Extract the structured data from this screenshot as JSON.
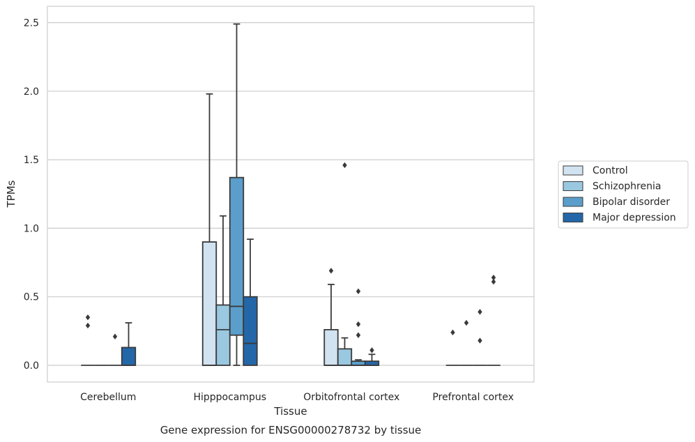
{
  "chart_data": {
    "type": "box",
    "title": "",
    "caption": "Gene expression for ENSG00000278732 by tissue",
    "xlabel": "Tissue",
    "ylabel": "TPMs",
    "ylim": [
      -0.12,
      2.62
    ],
    "yticks": [
      0.0,
      0.5,
      1.0,
      1.5,
      2.0,
      2.5
    ],
    "ytick_labels": [
      "0.0",
      "0.5",
      "1.0",
      "1.5",
      "2.0",
      "2.5"
    ],
    "categories": [
      "Cerebellum",
      "Hipppocampus",
      "Orbitofrontal cortex",
      "Prefrontal cortex"
    ],
    "grid": "horizontal",
    "legend_position": "right",
    "series": [
      {
        "name": "Control",
        "color": "#d1e2f1",
        "boxes": [
          {
            "q1": 0,
            "median": 0,
            "q3": 0,
            "whisker_low": 0,
            "whisker_high": 0,
            "outliers": [
              0.29,
              0.35
            ]
          },
          {
            "q1": 0,
            "median": 0,
            "q3": 0.9,
            "whisker_low": 0,
            "whisker_high": 1.98,
            "outliers": []
          },
          {
            "q1": 0,
            "median": 0,
            "q3": 0.26,
            "whisker_low": 0,
            "whisker_high": 0.59,
            "outliers": [
              0.69
            ]
          },
          {
            "q1": 0,
            "median": 0,
            "q3": 0,
            "whisker_low": 0,
            "whisker_high": 0,
            "outliers": [
              0.24
            ]
          }
        ]
      },
      {
        "name": "Schizophrenia",
        "color": "#9ac8e0",
        "boxes": [
          {
            "q1": 0,
            "median": 0,
            "q3": 0,
            "whisker_low": 0,
            "whisker_high": 0,
            "outliers": []
          },
          {
            "q1": 0,
            "median": 0.26,
            "q3": 0.44,
            "whisker_low": 0,
            "whisker_high": 1.09,
            "outliers": []
          },
          {
            "q1": 0,
            "median": 0,
            "q3": 0.12,
            "whisker_low": 0,
            "whisker_high": 0.2,
            "outliers": [
              1.46
            ]
          },
          {
            "q1": 0,
            "median": 0,
            "q3": 0,
            "whisker_low": 0,
            "whisker_high": 0,
            "outliers": [
              0.31
            ]
          }
        ]
      },
      {
        "name": "Bipolar disorder",
        "color": "#5b9ecc",
        "boxes": [
          {
            "q1": 0,
            "median": 0,
            "q3": 0,
            "whisker_low": 0,
            "whisker_high": 0,
            "outliers": [
              0.21
            ]
          },
          {
            "q1": 0.22,
            "median": 0.43,
            "q3": 1.37,
            "whisker_low": 0,
            "whisker_high": 2.49,
            "outliers": []
          },
          {
            "q1": 0,
            "median": 0,
            "q3": 0.03,
            "whisker_low": 0,
            "whisker_high": 0.04,
            "outliers": [
              0.22,
              0.3,
              0.54
            ]
          },
          {
            "q1": 0,
            "median": 0,
            "q3": 0,
            "whisker_low": 0,
            "whisker_high": 0,
            "outliers": [
              0.18,
              0.39
            ]
          }
        ]
      },
      {
        "name": "Major depression",
        "color": "#2467a9",
        "boxes": [
          {
            "q1": 0,
            "median": 0,
            "q3": 0.13,
            "whisker_low": 0,
            "whisker_high": 0.31,
            "outliers": []
          },
          {
            "q1": 0,
            "median": 0.16,
            "q3": 0.5,
            "whisker_low": 0,
            "whisker_high": 0.92,
            "outliers": []
          },
          {
            "q1": 0,
            "median": 0,
            "q3": 0.03,
            "whisker_low": 0,
            "whisker_high": 0.08,
            "outliers": [
              0.11
            ]
          },
          {
            "q1": 0,
            "median": 0,
            "q3": 0,
            "whisker_low": 0,
            "whisker_high": 0,
            "outliers": [
              0.61,
              0.64
            ]
          }
        ]
      }
    ]
  }
}
